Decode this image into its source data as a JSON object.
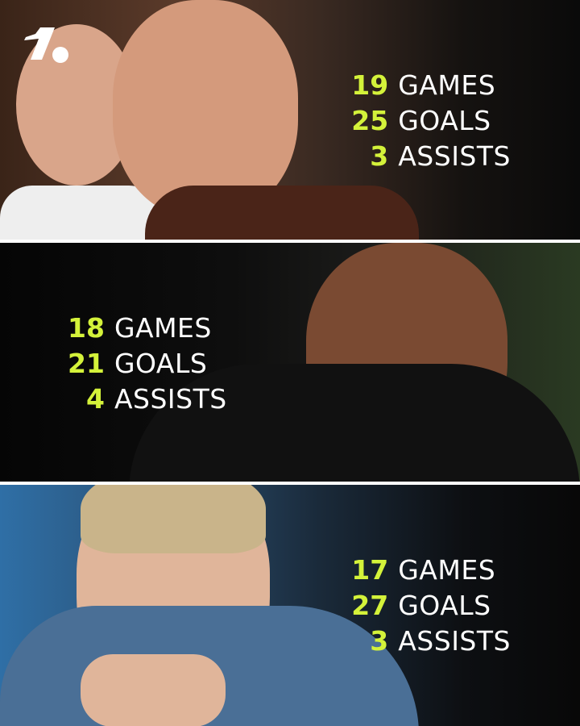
{
  "brand": {
    "logo": "OneFootball logo",
    "accent": "#d4f23a"
  },
  "panels": [
    {
      "stats": [
        {
          "value": "19",
          "label": "GAMES"
        },
        {
          "value": "25",
          "label": "GOALS"
        },
        {
          "value": "3",
          "label": "ASSISTS"
        }
      ]
    },
    {
      "stats": [
        {
          "value": "18",
          "label": "GAMES"
        },
        {
          "value": "21",
          "label": "GOALS"
        },
        {
          "value": "4",
          "label": "ASSISTS"
        }
      ]
    },
    {
      "stats": [
        {
          "value": "17",
          "label": "GAMES"
        },
        {
          "value": "27",
          "label": "GOALS"
        },
        {
          "value": "3",
          "label": "ASSISTS"
        }
      ]
    }
  ]
}
